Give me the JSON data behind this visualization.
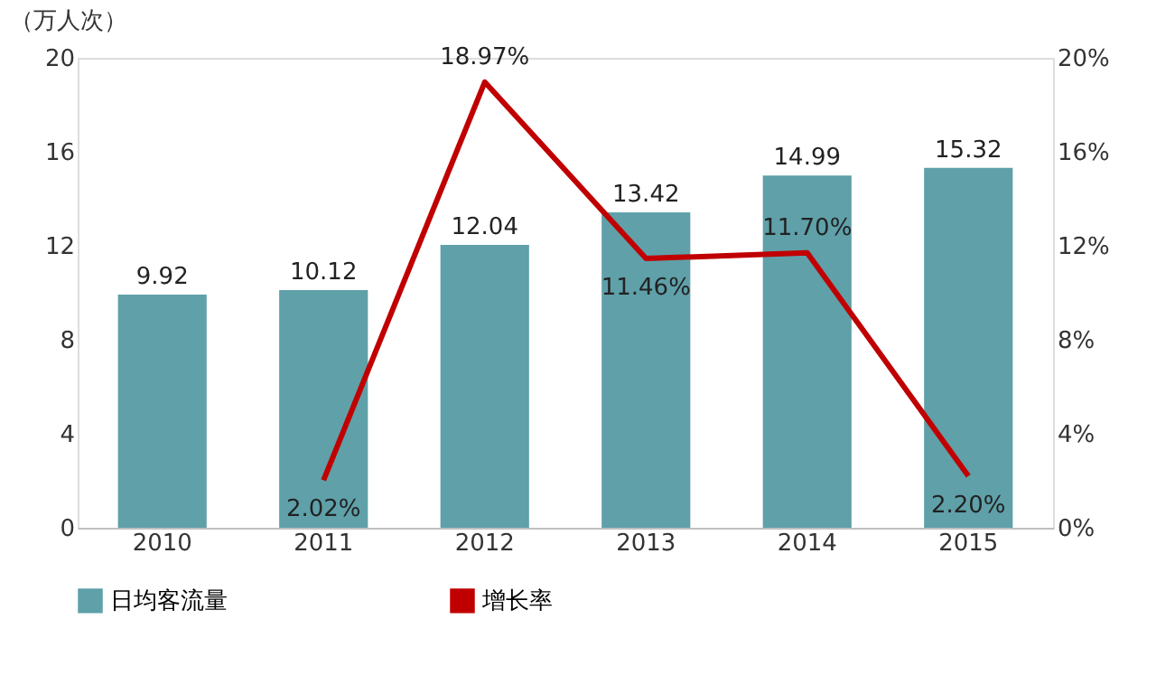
{
  "chart_data": {
    "type": "bar",
    "ylabel": "（万人次）",
    "categories": [
      "2010",
      "2011",
      "2012",
      "2013",
      "2014",
      "2015"
    ],
    "series": [
      {
        "name": "日均客流量",
        "color": "#5fa0a9",
        "values": [
          9.92,
          10.12,
          12.04,
          13.42,
          14.99,
          15.32
        ],
        "value_labels": [
          "9.92",
          "10.12",
          "12.04",
          "13.42",
          "14.99",
          "15.32"
        ]
      },
      {
        "name": "增长率",
        "type": "line",
        "axis": "y2",
        "color": "#c00000",
        "values": [
          null,
          2.02,
          18.97,
          11.46,
          11.7,
          2.2
        ],
        "value_labels": [
          null,
          "2.02%",
          "18.97%",
          "11.46%",
          "11.70%",
          "2.20%"
        ]
      }
    ],
    "ylim": [
      0,
      20
    ],
    "yticks": [
      0,
      4,
      8,
      12,
      16,
      20
    ],
    "y2lim": [
      0,
      20
    ],
    "y2ticks": [
      {
        "value": 0,
        "label": "0%"
      },
      {
        "value": 4,
        "label": "4%"
      },
      {
        "value": 8,
        "label": "8%"
      },
      {
        "value": 12,
        "label": "12%"
      },
      {
        "value": 16,
        "label": "16%"
      },
      {
        "value": 20,
        "label": "20%"
      }
    ],
    "grid": false,
    "legend": "bottom",
    "marker": "none",
    "line_style": "solid"
  }
}
